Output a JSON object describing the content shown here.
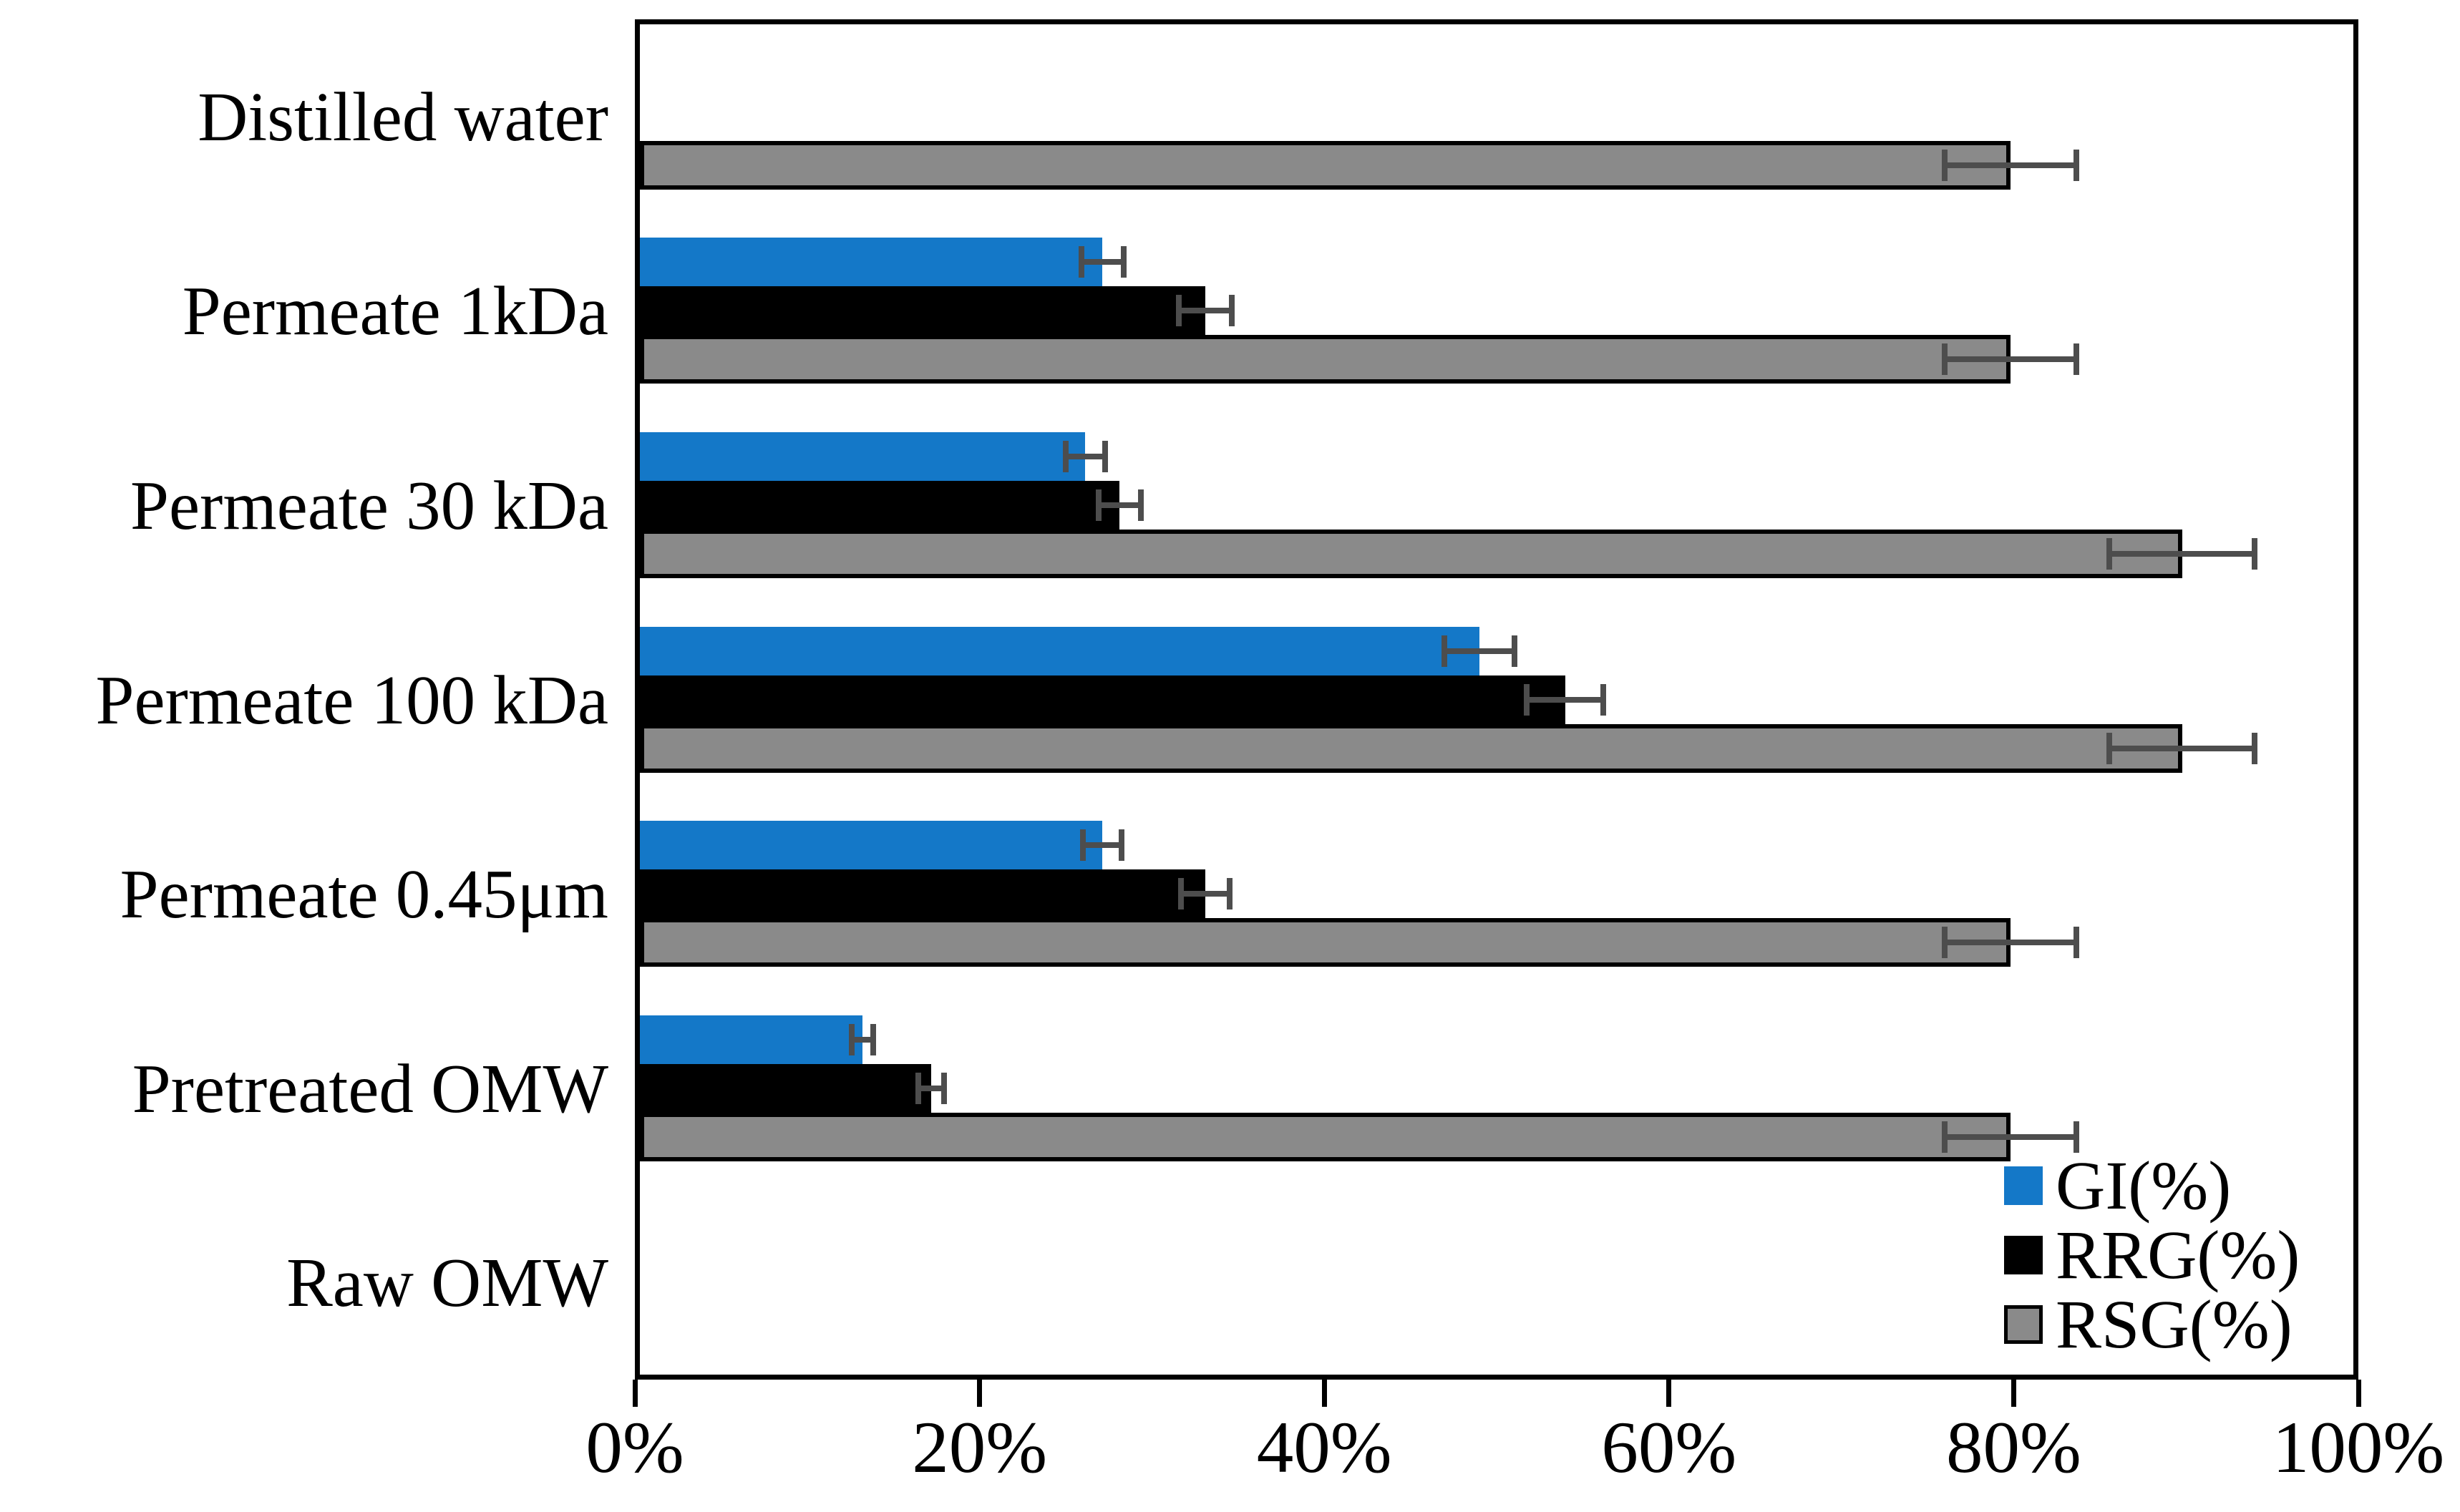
{
  "chart_data": {
    "type": "bar",
    "orientation": "horizontal",
    "title": "",
    "xlabel": "",
    "ylabel": "",
    "xlim": [
      0,
      100
    ],
    "x_tick_values": [
      0,
      20,
      40,
      60,
      80,
      100
    ],
    "x_tick_labels": [
      "0%",
      "20%",
      "40%",
      "60%",
      "80%",
      "100%"
    ],
    "grid": false,
    "legend_position": "inside-bottom-right",
    "categories": [
      "Distilled water",
      "Permeate 1kDa",
      "Permeate 30 kDa",
      "Permeate 100 kDa",
      "Permeate 0.45μm",
      "Pretreated OMW",
      "Raw OMW"
    ],
    "series": [
      {
        "name": "GI(%)",
        "color": "#1478c8",
        "bordered": false,
        "values": [
          null,
          27,
          26,
          49,
          27,
          13,
          null
        ],
        "errors": [
          null,
          1.4,
          1.3,
          2.2,
          1.3,
          0.8,
          null
        ]
      },
      {
        "name": "RRG(%)",
        "color": "#000000",
        "bordered": false,
        "values": [
          null,
          33,
          28,
          54,
          33,
          17,
          null
        ],
        "errors": [
          null,
          1.7,
          1.4,
          2.4,
          1.6,
          0.9,
          null
        ]
      },
      {
        "name": "RSG(%)",
        "color": "#8a8a8a",
        "bordered": true,
        "values": [
          80,
          80,
          90,
          90,
          80,
          80,
          null
        ],
        "errors": [
          4,
          4,
          4.4,
          4.4,
          4,
          4,
          null
        ]
      }
    ],
    "error_bar_color": "#4d4d4d",
    "frame_color": "#000000"
  }
}
